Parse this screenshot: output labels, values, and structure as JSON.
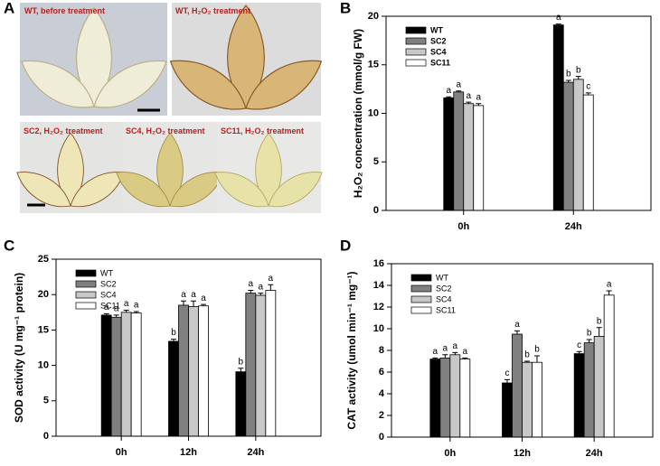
{
  "photo_panel": {
    "panel": "A",
    "captions": [
      "WT, before treatment",
      "WT, H₂O₂ treatment",
      "SC2, H₂O₂ treatment",
      "SC4, H₂O₂ treatment",
      "SC11, H₂O₂ treatment"
    ]
  },
  "chart_data": [
    {
      "type": "bar",
      "panel": "B",
      "y_label": "H₂O₂ concentration (mmol/g FW)",
      "categories": [
        "0h",
        "24h"
      ],
      "ylim": [
        0,
        20
      ],
      "yticks": [
        0,
        5,
        10,
        15,
        20
      ],
      "legend": "upper left",
      "legend_bold": true,
      "series": [
        {
          "name": "WT",
          "color": "#000000",
          "values": [
            11.6,
            19.1
          ],
          "errors": [
            0.1,
            0.1
          ],
          "letters": [
            "a",
            "a"
          ]
        },
        {
          "name": "SC2",
          "color": "#808080",
          "values": [
            12.2,
            13.2
          ],
          "errors": [
            0.1,
            0.2
          ],
          "letters": [
            "a",
            "b"
          ]
        },
        {
          "name": "SC4",
          "color": "#c8c8c8",
          "values": [
            11.0,
            13.5
          ],
          "errors": [
            0.15,
            0.3
          ],
          "letters": [
            "a",
            "b"
          ]
        },
        {
          "name": "SC11",
          "color": "#ffffff",
          "values": [
            10.8,
            11.9
          ],
          "errors": [
            0.2,
            0.2
          ],
          "letters": [
            "a",
            "c"
          ]
        }
      ]
    },
    {
      "type": "bar",
      "panel": "C",
      "y_label": "SOD activity (U mg⁻¹ protein)",
      "categories": [
        "0h",
        "12h",
        "24h"
      ],
      "ylim": [
        0,
        25
      ],
      "yticks": [
        0,
        5,
        10,
        15,
        20,
        25
      ],
      "legend": "upper left",
      "legend_bold": false,
      "series": [
        {
          "name": "WT",
          "color": "#000000",
          "values": [
            17.1,
            13.4,
            9.1
          ],
          "errors": [
            0.2,
            0.3,
            0.5
          ],
          "letters": [
            "a",
            "b",
            "b"
          ]
        },
        {
          "name": "SC2",
          "color": "#808080",
          "values": [
            16.8,
            18.5,
            20.2
          ],
          "errors": [
            0.3,
            0.6,
            0.4
          ],
          "letters": [
            "a",
            "a",
            "a"
          ]
        },
        {
          "name": "SC4",
          "color": "#c8c8c8",
          "values": [
            17.5,
            18.3,
            19.9
          ],
          "errors": [
            0.3,
            0.8,
            0.3
          ],
          "letters": [
            "a",
            "a",
            "a"
          ]
        },
        {
          "name": "SC11",
          "color": "#ffffff",
          "values": [
            17.4,
            18.4,
            20.6
          ],
          "errors": [
            0.2,
            0.2,
            0.8
          ],
          "letters": [
            "a",
            "a",
            "a"
          ]
        }
      ]
    },
    {
      "type": "bar",
      "panel": "D",
      "y_label": "CAT activity (umol min⁻¹ mg⁻¹)",
      "categories": [
        "0h",
        "12h",
        "24h"
      ],
      "ylim": [
        0,
        16
      ],
      "yticks": [
        0,
        2,
        4,
        6,
        8,
        10,
        12,
        14,
        16
      ],
      "legend": "upper left",
      "legend_bold": false,
      "series": [
        {
          "name": "WT",
          "color": "#000000",
          "values": [
            7.2,
            5.0,
            7.7
          ],
          "errors": [
            0.1,
            0.3,
            0.2
          ],
          "letters": [
            "a",
            "c",
            "c"
          ]
        },
        {
          "name": "SC2",
          "color": "#808080",
          "values": [
            7.3,
            9.5,
            8.7
          ],
          "errors": [
            0.3,
            0.3,
            0.3
          ],
          "letters": [
            "a",
            "a",
            "b"
          ]
        },
        {
          "name": "SC4",
          "color": "#c8c8c8",
          "values": [
            7.6,
            6.9,
            9.3
          ],
          "errors": [
            0.2,
            0.1,
            0.8
          ],
          "letters": [
            "a",
            "b",
            "b"
          ]
        },
        {
          "name": "SC11",
          "color": "#ffffff",
          "values": [
            7.2,
            6.9,
            13.1
          ],
          "errors": [
            0.1,
            0.6,
            0.4
          ],
          "letters": [
            "a",
            "b",
            "a"
          ]
        }
      ]
    }
  ]
}
